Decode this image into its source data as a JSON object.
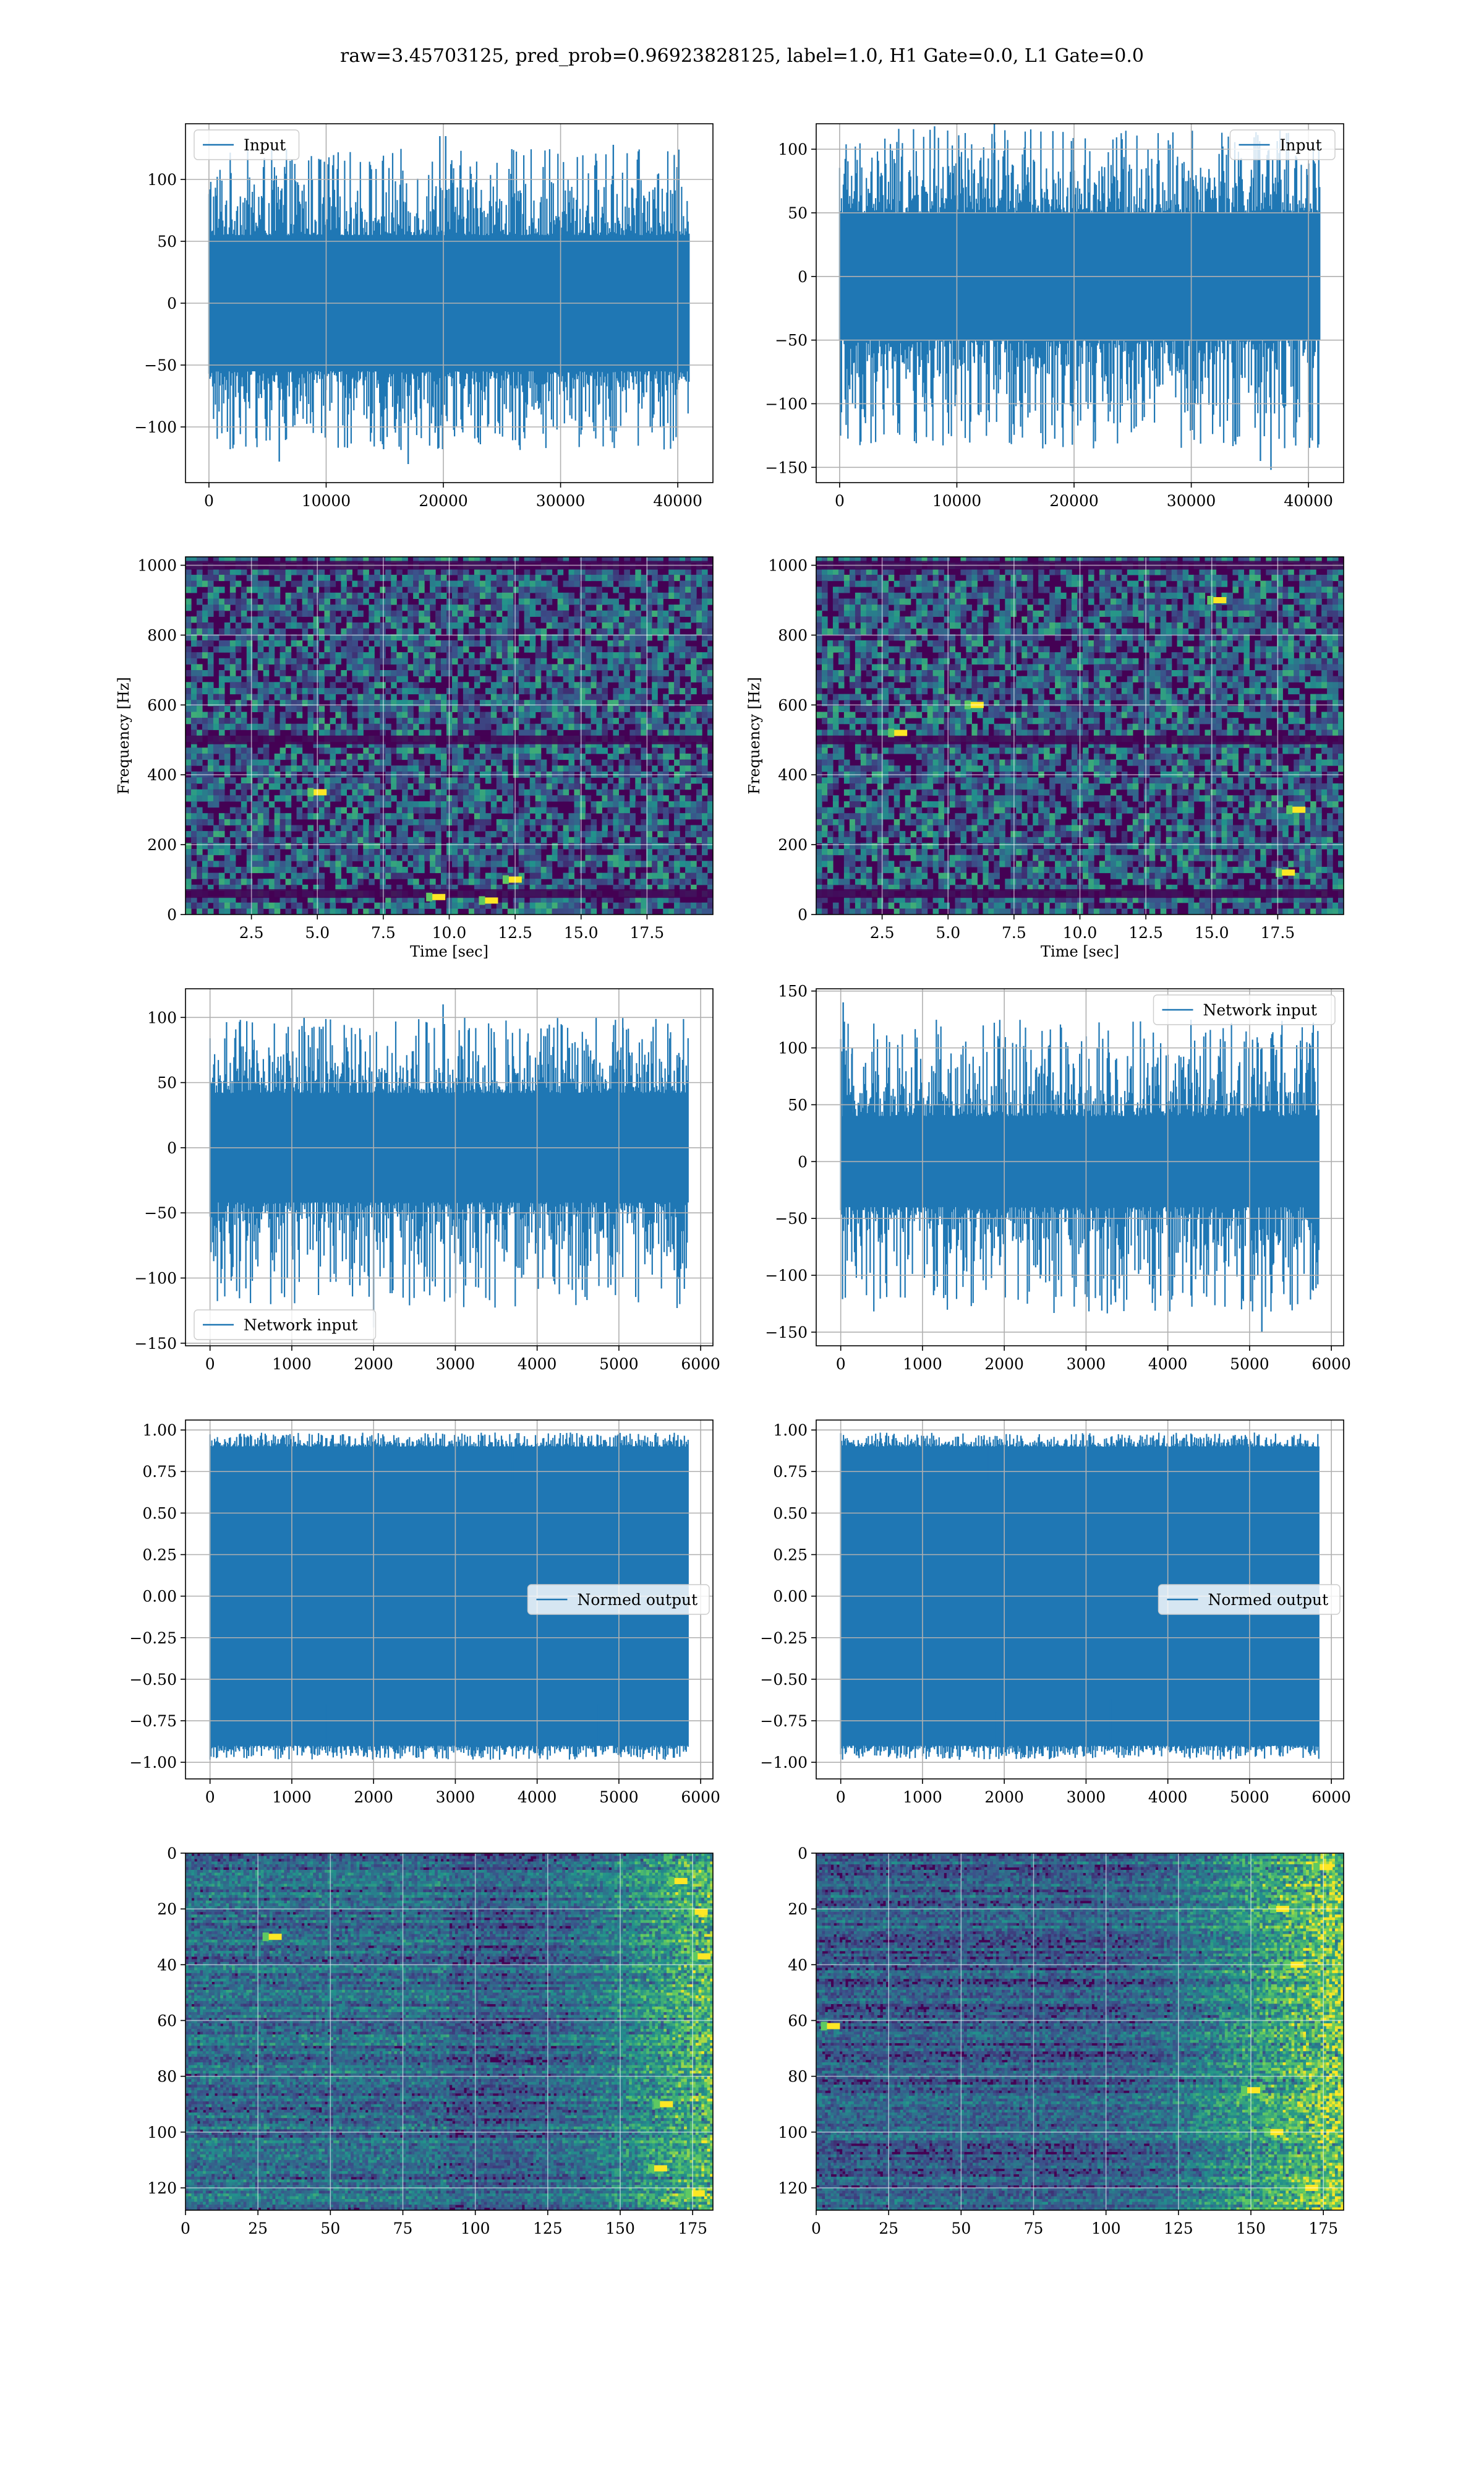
{
  "figure_title": "raw=3.45703125, pred_prob=0.96923828125, label=1.0, H1 Gate=0.0, L1 Gate=0.0",
  "colors": {
    "line": "#1f77b4",
    "grid": "#b0b0b0",
    "viridis_dark": "#440154",
    "viridis_purple": "#472d7b",
    "viridis_blue": "#3b528b",
    "viridis_teal": "#21918c",
    "viridis_green": "#5ec962",
    "viridis_yellow": "#fde725"
  },
  "chart_data": [
    {
      "id": "h1-input",
      "type": "line",
      "title": "",
      "xlabel": "",
      "ylabel": "",
      "legend": {
        "label": "Input",
        "placement": "upper left"
      },
      "xlim": [
        -2000,
        43000
      ],
      "ylim": [
        -145,
        145
      ],
      "xticks": [
        0,
        10000,
        20000,
        30000,
        40000
      ],
      "xtick_labels": [
        "0",
        "10000",
        "20000",
        "30000",
        "40000"
      ],
      "yticks": [
        -100,
        -50,
        0,
        50,
        100
      ],
      "ytick_labels": [
        "−100",
        "−50",
        "0",
        "50",
        "100"
      ],
      "series": [
        {
          "name": "Input",
          "n_samples": 40960,
          "envelope_min": -130,
          "envelope_max": 137,
          "band_low": -55,
          "band_high": 55
        }
      ],
      "spikes": [
        [
          19700,
          135
        ],
        [
          20200,
          135
        ],
        [
          34500,
          128
        ],
        [
          6000,
          -128
        ],
        [
          17000,
          -130
        ],
        [
          14900,
          -118
        ]
      ]
    },
    {
      "id": "l1-input",
      "type": "line",
      "title": "",
      "xlabel": "",
      "ylabel": "",
      "legend": {
        "label": "Input",
        "placement": "upper right"
      },
      "xlim": [
        -2000,
        43000
      ],
      "ylim": [
        -162,
        120
      ],
      "xticks": [
        0,
        10000,
        20000,
        30000,
        40000
      ],
      "xtick_labels": [
        "0",
        "10000",
        "20000",
        "30000",
        "40000"
      ],
      "yticks": [
        -150,
        -100,
        -50,
        0,
        50,
        100
      ],
      "ytick_labels": [
        "−150",
        "−100",
        "−50",
        "0",
        "50",
        "100"
      ],
      "series": [
        {
          "name": "Input",
          "n_samples": 40960,
          "envelope_min": -152,
          "envelope_max": 128,
          "band_low": -50,
          "band_high": 50
        }
      ],
      "spikes": [
        [
          13200,
          128
        ],
        [
          36800,
          -152
        ],
        [
          35900,
          -145
        ],
        [
          25300,
          -118
        ],
        [
          8100,
          118
        ]
      ]
    },
    {
      "id": "h1-spectrogram",
      "type": "heatmap",
      "title": "",
      "xlabel": "Time [sec]",
      "ylabel": "Frequency [Hz]",
      "xlim": [
        0,
        20
      ],
      "ylim": [
        0,
        1024
      ],
      "xticks": [
        2.5,
        5.0,
        7.5,
        10.0,
        12.5,
        15.0,
        17.5
      ],
      "xtick_labels": [
        "2.5",
        "5.0",
        "7.5",
        "10.0",
        "12.5",
        "15.0",
        "17.5"
      ],
      "yticks": [
        0,
        200,
        400,
        600,
        800,
        1000
      ],
      "ytick_labels": [
        "0",
        "200",
        "400",
        "600",
        "800",
        "1000"
      ],
      "colormap": "viridis",
      "dark_bands_hz": [
        500,
        1000,
        60
      ],
      "hot_spots": [
        [
          12.4,
          100
        ],
        [
          9.5,
          50
        ],
        [
          11.5,
          40
        ],
        [
          5.0,
          350
        ]
      ]
    },
    {
      "id": "l1-spectrogram",
      "type": "heatmap",
      "title": "",
      "xlabel": "Time [sec]",
      "ylabel": "Frequency [Hz]",
      "xlim": [
        0,
        20
      ],
      "ylim": [
        0,
        1024
      ],
      "xticks": [
        2.5,
        5.0,
        7.5,
        10.0,
        12.5,
        15.0,
        17.5
      ],
      "xtick_labels": [
        "2.5",
        "5.0",
        "7.5",
        "10.0",
        "12.5",
        "15.0",
        "17.5"
      ],
      "yticks": [
        0,
        200,
        400,
        600,
        800,
        1000
      ],
      "ytick_labels": [
        "0",
        "200",
        "400",
        "600",
        "800",
        "1000"
      ],
      "colormap": "viridis",
      "dark_bands_hz": [
        500,
        1000,
        60
      ],
      "hot_spots": [
        [
          18.2,
          300
        ],
        [
          17.8,
          120
        ],
        [
          3.1,
          520
        ],
        [
          6.0,
          600
        ],
        [
          15.2,
          900
        ]
      ]
    },
    {
      "id": "h1-network-input",
      "type": "line",
      "title": "",
      "xlabel": "",
      "ylabel": "",
      "legend": {
        "label": "Network input",
        "placement": "lower left"
      },
      "xlim": [
        -300,
        6150
      ],
      "ylim": [
        -152,
        122
      ],
      "xticks": [
        0,
        1000,
        2000,
        3000,
        4000,
        5000,
        6000
      ],
      "xtick_labels": [
        "0",
        "1000",
        "2000",
        "3000",
        "4000",
        "5000",
        "6000"
      ],
      "yticks": [
        -150,
        -100,
        -50,
        0,
        50,
        100
      ],
      "ytick_labels": [
        "−150",
        "−100",
        "−50",
        "0",
        "50",
        "100"
      ],
      "series": [
        {
          "name": "Network input",
          "n_samples": 5846,
          "envelope_min": -138,
          "envelope_max": 110,
          "band_low": -42,
          "band_high": 42
        }
      ],
      "spikes": [
        [
          2000,
          -138
        ],
        [
          2850,
          110
        ],
        [
          1150,
          100
        ],
        [
          5050,
          92
        ]
      ]
    },
    {
      "id": "l1-network-input",
      "type": "line",
      "title": "",
      "xlabel": "",
      "ylabel": "",
      "legend": {
        "label": "Network input",
        "placement": "upper right"
      },
      "xlim": [
        -300,
        6150
      ],
      "ylim": [
        -162,
        152
      ],
      "xticks": [
        0,
        1000,
        2000,
        3000,
        4000,
        5000,
        6000
      ],
      "xtick_labels": [
        "0",
        "1000",
        "2000",
        "3000",
        "4000",
        "5000",
        "6000"
      ],
      "yticks": [
        -150,
        -100,
        -50,
        0,
        50,
        100,
        150
      ],
      "ytick_labels": [
        "−150",
        "−100",
        "−50",
        "0",
        "50",
        "100",
        "150"
      ],
      "series": [
        {
          "name": "Network input",
          "n_samples": 5846,
          "envelope_min": -150,
          "envelope_max": 140,
          "band_low": -40,
          "band_high": 40
        }
      ],
      "spikes": [
        [
          30,
          140
        ],
        [
          140,
          100
        ],
        [
          5150,
          -150
        ],
        [
          5100,
          -100
        ],
        [
          5150,
          100
        ]
      ]
    },
    {
      "id": "h1-normed-output",
      "type": "line",
      "title": "",
      "xlabel": "",
      "ylabel": "",
      "legend": {
        "label": "Normed output",
        "placement": "center right"
      },
      "xlim": [
        -300,
        6150
      ],
      "ylim": [
        -1.1,
        1.06
      ],
      "xticks": [
        0,
        1000,
        2000,
        3000,
        4000,
        5000,
        6000
      ],
      "xtick_labels": [
        "0",
        "1000",
        "2000",
        "3000",
        "4000",
        "5000",
        "6000"
      ],
      "yticks": [
        -1.0,
        -0.75,
        -0.5,
        -0.25,
        0.0,
        0.25,
        0.5,
        0.75,
        1.0
      ],
      "ytick_labels": [
        "−1.00",
        "−0.75",
        "−0.50",
        "−0.25",
        "0.00",
        "0.25",
        "0.50",
        "0.75",
        "1.00"
      ],
      "series": [
        {
          "name": "Normed output",
          "n_samples": 5846,
          "envelope_min": -1.0,
          "envelope_max": 1.0,
          "band_low": -0.9,
          "band_high": 0.9
        }
      ],
      "spikes": [
        [
          1350,
          0.62
        ],
        [
          3700,
          0.68
        ],
        [
          1420,
          -0.65
        ],
        [
          4750,
          -0.65
        ]
      ]
    },
    {
      "id": "l1-normed-output",
      "type": "line",
      "title": "",
      "xlabel": "",
      "ylabel": "",
      "legend": {
        "label": "Normed output",
        "placement": "center right"
      },
      "xlim": [
        -300,
        6150
      ],
      "ylim": [
        -1.1,
        1.06
      ],
      "xticks": [
        0,
        1000,
        2000,
        3000,
        4000,
        5000,
        6000
      ],
      "xtick_labels": [
        "0",
        "1000",
        "2000",
        "3000",
        "4000",
        "5000",
        "6000"
      ],
      "yticks": [
        -1.0,
        -0.75,
        -0.5,
        -0.25,
        0.0,
        0.25,
        0.5,
        0.75,
        1.0
      ],
      "ytick_labels": [
        "−1.00",
        "−0.75",
        "−0.50",
        "−0.25",
        "0.00",
        "0.25",
        "0.50",
        "0.75",
        "1.00"
      ],
      "series": [
        {
          "name": "Normed output",
          "n_samples": 5846,
          "envelope_min": -1.0,
          "envelope_max": 1.0,
          "band_low": -0.9,
          "band_high": 0.9
        }
      ],
      "spikes": [
        [
          1800,
          0.7
        ],
        [
          3300,
          -0.62
        ],
        [
          1900,
          -0.7
        ]
      ]
    },
    {
      "id": "h1-feature-map",
      "type": "heatmap",
      "title": "",
      "xlabel": "",
      "ylabel": "",
      "xlim": [
        0,
        182
      ],
      "ylim": [
        128,
        0
      ],
      "xticks": [
        0,
        25,
        50,
        75,
        100,
        125,
        150,
        175
      ],
      "xtick_labels": [
        "0",
        "25",
        "50",
        "75",
        "100",
        "125",
        "150",
        "175"
      ],
      "yticks": [
        0,
        20,
        40,
        60,
        80,
        100,
        120
      ],
      "ytick_labels": [
        "0",
        "20",
        "40",
        "60",
        "80",
        "100",
        "120"
      ],
      "colormap": "viridis",
      "rows": 128,
      "cols": 182,
      "activity_rises_toward": "right",
      "hot_spots": [
        [
          176,
          122
        ],
        [
          177,
          21
        ],
        [
          165,
          90
        ],
        [
          163,
          113
        ],
        [
          170,
          10
        ],
        [
          178,
          37
        ],
        [
          30,
          30
        ]
      ]
    },
    {
      "id": "l1-feature-map",
      "type": "heatmap",
      "title": "",
      "xlabel": "",
      "ylabel": "",
      "xlim": [
        0,
        182
      ],
      "ylim": [
        128,
        0
      ],
      "xticks": [
        0,
        25,
        50,
        75,
        100,
        125,
        150,
        175
      ],
      "xtick_labels": [
        "0",
        "25",
        "50",
        "75",
        "100",
        "125",
        "150",
        "175"
      ],
      "yticks": [
        0,
        20,
        40,
        60,
        80,
        100,
        120
      ],
      "ytick_labels": [
        "0",
        "20",
        "40",
        "60",
        "80",
        "100",
        "120"
      ],
      "colormap": "viridis",
      "rows": 128,
      "cols": 182,
      "activity_rises_toward": "right",
      "hot_spots": [
        [
          160,
          20
        ],
        [
          158,
          100
        ],
        [
          170,
          120
        ],
        [
          150,
          85
        ],
        [
          175,
          5
        ],
        [
          5,
          62
        ],
        [
          165,
          40
        ]
      ]
    }
  ]
}
